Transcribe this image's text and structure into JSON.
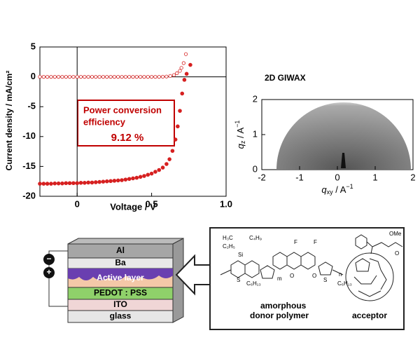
{
  "chart_data": [
    {
      "type": "scatter",
      "x_label": "Voltage  / V",
      "y_label": "Current density / mA/cm²",
      "xlim": [
        -0.25,
        1.0
      ],
      "ylim": [
        -20,
        5
      ],
      "xticks": [
        0,
        0.5,
        {
          "value": 1.0,
          "label": "1.0"
        }
      ],
      "yticks": [
        5,
        0,
        -5,
        -10,
        -15,
        -20
      ],
      "zero_lines": true,
      "annotation": [
        "Power conversion",
        "efficiency"
      ],
      "annotation_value": "9.12 %",
      "series": [
        {
          "marker": "open",
          "color": "#d62020",
          "x": [
            -0.25,
            -0.225,
            -0.2,
            -0.175,
            -0.15,
            -0.125,
            -0.1,
            -0.075,
            -0.05,
            -0.025,
            0,
            0.025,
            0.05,
            0.075,
            0.1,
            0.125,
            0.15,
            0.175,
            0.2,
            0.225,
            0.25,
            0.275,
            0.3,
            0.325,
            0.35,
            0.375,
            0.4,
            0.425,
            0.45,
            0.475,
            0.5,
            0.525,
            0.55,
            0.575,
            0.6,
            0.625,
            0.65,
            0.67,
            0.69,
            0.7,
            0.715,
            0.73
          ],
          "values": [
            0,
            0,
            0,
            0,
            0,
            0,
            0,
            0,
            0,
            0,
            0,
            0,
            0,
            0,
            0,
            0,
            0,
            0,
            0,
            0,
            0,
            0,
            0,
            0,
            0,
            0,
            0,
            0,
            0,
            0,
            0,
            0,
            0,
            0.02,
            0.05,
            0.15,
            0.3,
            0.6,
            1.0,
            1.5,
            2.3,
            3.8
          ]
        },
        {
          "marker": "filled",
          "color": "#d62020",
          "x": [
            -0.25,
            -0.225,
            -0.2,
            -0.175,
            -0.15,
            -0.125,
            -0.1,
            -0.075,
            -0.05,
            -0.025,
            0,
            0.025,
            0.05,
            0.075,
            0.1,
            0.125,
            0.15,
            0.175,
            0.2,
            0.225,
            0.25,
            0.275,
            0.3,
            0.325,
            0.35,
            0.375,
            0.4,
            0.425,
            0.45,
            0.475,
            0.5,
            0.525,
            0.55,
            0.575,
            0.6,
            0.62,
            0.64,
            0.66,
            0.675,
            0.69,
            0.705,
            0.72,
            0.735,
            0.76
          ],
          "values": [
            -17.9,
            -17.9,
            -17.9,
            -17.9,
            -17.85,
            -17.85,
            -17.85,
            -17.8,
            -17.8,
            -17.8,
            -17.8,
            -17.75,
            -17.75,
            -17.7,
            -17.7,
            -17.65,
            -17.6,
            -17.55,
            -17.5,
            -17.45,
            -17.4,
            -17.35,
            -17.3,
            -17.2,
            -17.1,
            -17.0,
            -16.9,
            -16.75,
            -16.6,
            -16.4,
            -16.2,
            -15.9,
            -15.6,
            -15.2,
            -14.6,
            -13.8,
            -12.4,
            -10.5,
            -8.3,
            -5.7,
            -2.8,
            -0.5,
            0.5,
            2.0
          ]
        }
      ]
    },
    {
      "type": "image",
      "title": "2D GIWAX",
      "x_label": {
        "symbol": "q",
        "sub": "xy",
        "unit": " / A",
        "sup": "−1"
      },
      "y_label": {
        "symbol": "q",
        "sub": "z",
        "unit": " / A",
        "sup": "−1"
      },
      "xlim": [
        -2,
        2
      ],
      "ylim": [
        0,
        2
      ],
      "xticks": [
        -2,
        -1,
        0,
        1,
        2
      ],
      "yticks": [
        0,
        1,
        2
      ]
    }
  ],
  "device": {
    "layers": [
      "Al",
      "Ba",
      "Active layer",
      "PEDOT : PSS",
      "ITO",
      "glass"
    ],
    "minus": "−",
    "plus": "+"
  },
  "structures": {
    "atoms": [
      "H₃C",
      "C₄H₉",
      "C₂H₅",
      "Si",
      "C₆H₁₃",
      "F",
      "F",
      "O",
      "O",
      "S",
      "S",
      "C₆H₁₃",
      "m",
      "n",
      "OMe",
      "O"
    ],
    "donor_label": [
      "amorphous",
      "donor polymer"
    ],
    "acceptor_label": "acceptor"
  }
}
